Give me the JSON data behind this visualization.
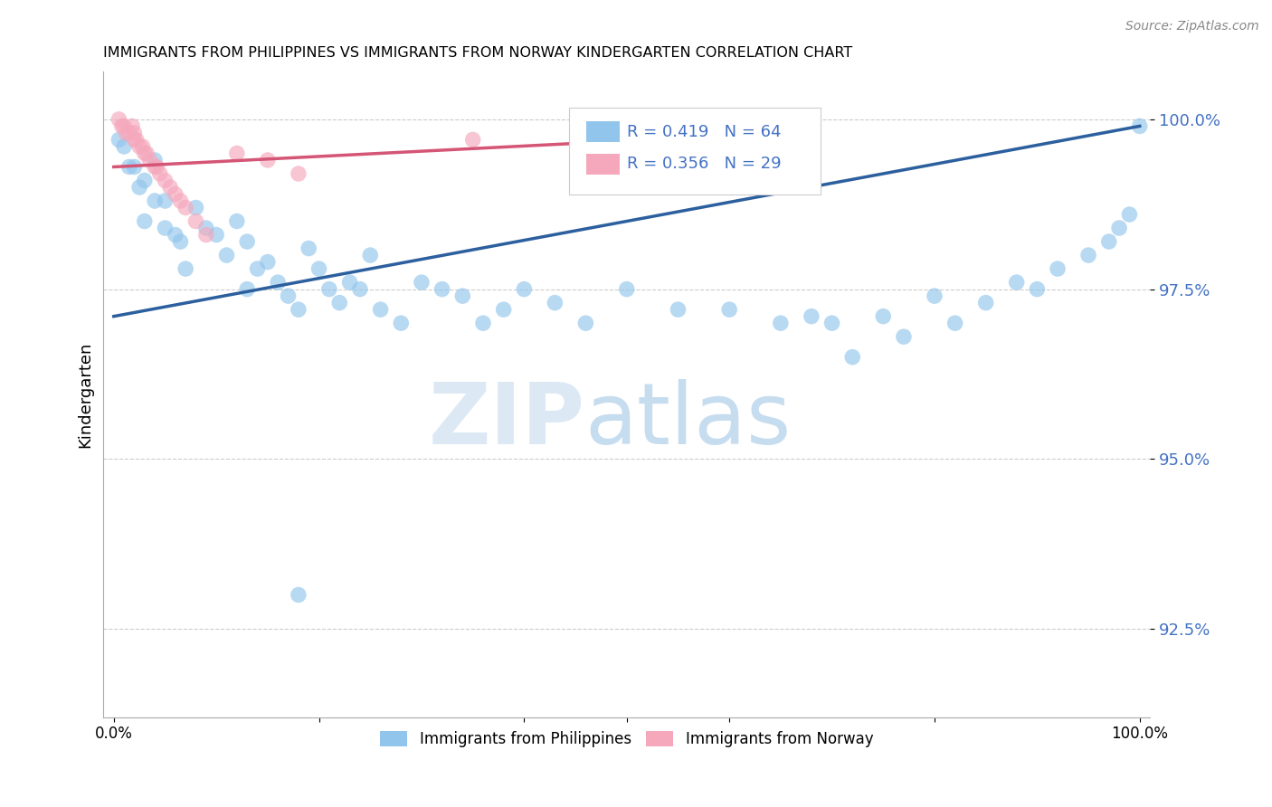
{
  "title": "IMMIGRANTS FROM PHILIPPINES VS IMMIGRANTS FROM NORWAY KINDERGARTEN CORRELATION CHART",
  "source": "Source: ZipAtlas.com",
  "ylabel": "Kindergarten",
  "ytick_labels": [
    "100.0%",
    "97.5%",
    "95.0%",
    "92.5%"
  ],
  "ytick_values": [
    1.0,
    0.975,
    0.95,
    0.925
  ],
  "xlim": [
    -0.01,
    1.01
  ],
  "ylim": [
    0.912,
    1.007
  ],
  "legend_r_blue": "R = 0.419",
  "legend_n_blue": "N = 64",
  "legend_r_pink": "R = 0.356",
  "legend_n_pink": "N = 29",
  "legend_label_blue": "Immigrants from Philippines",
  "legend_label_pink": "Immigrants from Norway",
  "blue_color": "#92C5EC",
  "pink_color": "#F5A8BC",
  "line_blue_color": "#2C5F9E",
  "line_pink_color": "#D45575",
  "blue_scatter_x": [
    0.005,
    0.01,
    0.015,
    0.02,
    0.025,
    0.03,
    0.03,
    0.04,
    0.04,
    0.05,
    0.05,
    0.06,
    0.065,
    0.07,
    0.08,
    0.09,
    0.1,
    0.11,
    0.12,
    0.13,
    0.13,
    0.14,
    0.15,
    0.16,
    0.17,
    0.18,
    0.19,
    0.2,
    0.21,
    0.22,
    0.23,
    0.24,
    0.25,
    0.26,
    0.28,
    0.3,
    0.32,
    0.34,
    0.36,
    0.38,
    0.4,
    0.43,
    0.46,
    0.5,
    0.55,
    0.6,
    0.65,
    0.7,
    0.75,
    0.8,
    0.85,
    0.88,
    0.9,
    0.92,
    0.95,
    0.97,
    0.98,
    0.99,
    1.0,
    0.68,
    0.72,
    0.77,
    0.82,
    0.18
  ],
  "blue_scatter_y": [
    0.997,
    0.996,
    0.993,
    0.993,
    0.99,
    0.991,
    0.985,
    0.994,
    0.988,
    0.988,
    0.984,
    0.983,
    0.982,
    0.978,
    0.987,
    0.984,
    0.983,
    0.98,
    0.985,
    0.982,
    0.975,
    0.978,
    0.979,
    0.976,
    0.974,
    0.972,
    0.981,
    0.978,
    0.975,
    0.973,
    0.976,
    0.975,
    0.98,
    0.972,
    0.97,
    0.976,
    0.975,
    0.974,
    0.97,
    0.972,
    0.975,
    0.973,
    0.97,
    0.975,
    0.972,
    0.972,
    0.97,
    0.97,
    0.971,
    0.974,
    0.973,
    0.976,
    0.975,
    0.978,
    0.98,
    0.982,
    0.984,
    0.986,
    0.999,
    0.971,
    0.965,
    0.968,
    0.97,
    0.93
  ],
  "pink_scatter_x": [
    0.005,
    0.008,
    0.01,
    0.012,
    0.015,
    0.018,
    0.02,
    0.02,
    0.022,
    0.025,
    0.028,
    0.03,
    0.032,
    0.035,
    0.04,
    0.042,
    0.045,
    0.05,
    0.055,
    0.06,
    0.065,
    0.07,
    0.08,
    0.09,
    0.12,
    0.15,
    0.18,
    0.35,
    0.62
  ],
  "pink_scatter_y": [
    1.0,
    0.999,
    0.999,
    0.998,
    0.998,
    0.999,
    0.998,
    0.997,
    0.997,
    0.996,
    0.996,
    0.995,
    0.995,
    0.994,
    0.993,
    0.993,
    0.992,
    0.991,
    0.99,
    0.989,
    0.988,
    0.987,
    0.985,
    0.983,
    0.995,
    0.994,
    0.992,
    0.997,
    0.998
  ],
  "blue_line_x": [
    0.0,
    1.0
  ],
  "blue_line_y": [
    0.971,
    0.999
  ],
  "pink_line_x": [
    0.0,
    0.65
  ],
  "pink_line_y": [
    0.993,
    0.998
  ]
}
